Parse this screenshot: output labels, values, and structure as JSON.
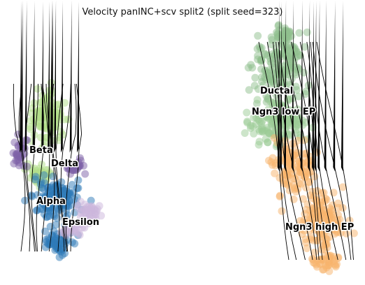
{
  "chart_data": {
    "type": "scatter",
    "title": "Velocity panINC+scv split2 (split seed=323)",
    "clusters": [
      {
        "name": "Beta",
        "color": "#b2de8a"
      },
      {
        "name": "Delta",
        "color": "#7e62a8"
      },
      {
        "name": "Alpha",
        "color": "#2d7ab8"
      },
      {
        "name": "Epsilon",
        "color": "#cbb5dc"
      },
      {
        "name": "Ductal",
        "color": "#8fc08e"
      },
      {
        "name": "Ngn3 low EP",
        "color": "#9ccb96"
      },
      {
        "name": "Ngn3 high EP",
        "color": "#f7b36c"
      }
    ],
    "labels": [
      "Beta",
      "Delta",
      "Alpha",
      "Epsilon",
      "Ductal",
      "Ngn3 low EP",
      "Ngn3 high EP"
    ],
    "stream_color": "#000000",
    "grid": false,
    "axes_visible": false
  }
}
